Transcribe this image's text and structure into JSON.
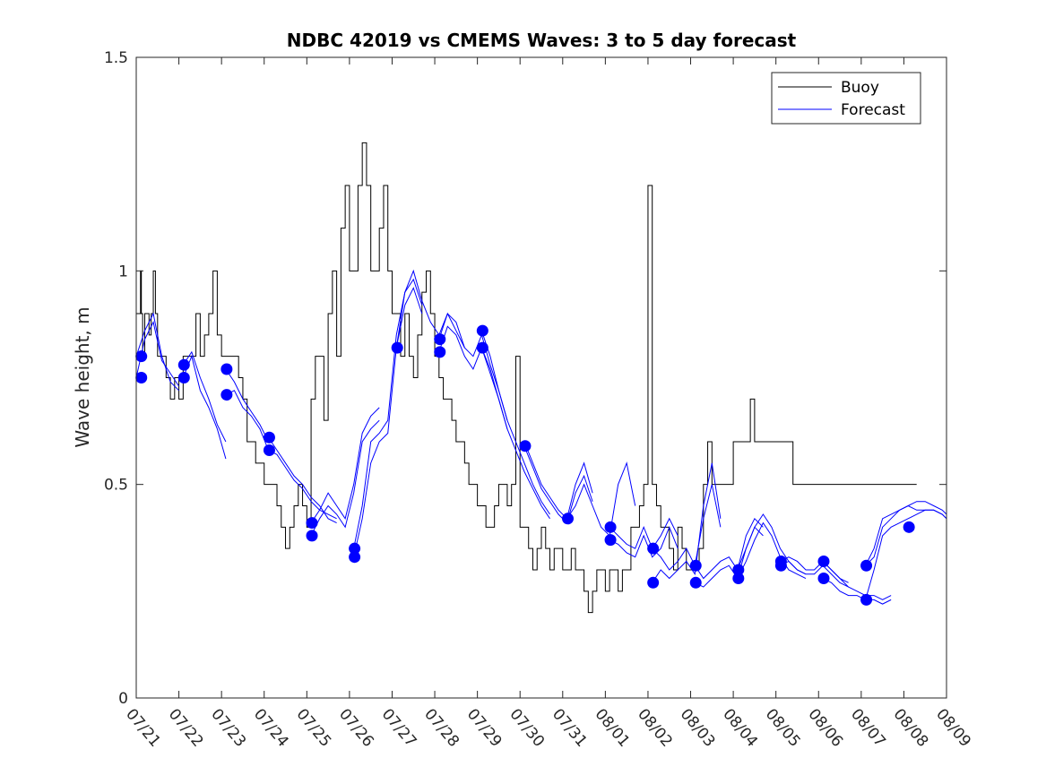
{
  "chart_data": {
    "type": "line",
    "title": "NDBC 42019 vs CMEMS Waves: 3 to 5 day forecast",
    "ylabel": "Wave height, m",
    "xlabel": "",
    "ylim": [
      0,
      1.5
    ],
    "xlim": [
      0,
      19
    ],
    "y_ticks": [
      0,
      0.5,
      1,
      1.5
    ],
    "y_tick_labels": [
      "0",
      "0.5",
      "1",
      "1.5"
    ],
    "x_tick_positions": [
      0,
      1,
      2,
      3,
      4,
      5,
      6,
      7,
      8,
      9,
      10,
      11,
      12,
      13,
      14,
      15,
      16,
      17,
      18,
      19
    ],
    "x_tick_labels": [
      "07/21",
      "07/22",
      "07/23",
      "07/24",
      "07/25",
      "07/26",
      "07/27",
      "07/28",
      "07/29",
      "07/30",
      "07/31",
      "08/01",
      "08/02",
      "08/03",
      "08/04",
      "08/05",
      "08/06",
      "08/07",
      "08/08",
      "08/09"
    ],
    "x_units": "days since 07/21",
    "legend": {
      "placement": "top-right",
      "entries": [
        {
          "label": "Buoy",
          "color": "#000000"
        },
        {
          "label": "Forecast",
          "color": "#0000ff"
        }
      ]
    },
    "colors": {
      "buoy": "#000000",
      "forecast": "#0000ff",
      "markers": "#0000ff"
    },
    "buoy": {
      "x": [
        0,
        0.1,
        0.12,
        0.15,
        0.2,
        0.25,
        0.3,
        0.35,
        0.4,
        0.45,
        0.5,
        0.55,
        0.6,
        0.7,
        0.8,
        0.9,
        1,
        1.1,
        1.2,
        1.3,
        1.4,
        1.5,
        1.6,
        1.7,
        1.8,
        1.9,
        2,
        2.1,
        2.2,
        2.3,
        2.4,
        2.5,
        2.6,
        2.7,
        2.8,
        2.9,
        3,
        3.1,
        3.2,
        3.3,
        3.4,
        3.5,
        3.6,
        3.7,
        3.8,
        3.9,
        4,
        4.1,
        4.2,
        4.3,
        4.4,
        4.5,
        4.6,
        4.7,
        4.8,
        4.9,
        5,
        5.1,
        5.2,
        5.3,
        5.4,
        5.5,
        5.6,
        5.7,
        5.8,
        5.9,
        6,
        6.1,
        6.2,
        6.3,
        6.4,
        6.5,
        6.6,
        6.7,
        6.8,
        6.9,
        7,
        7.1,
        7.2,
        7.3,
        7.4,
        7.5,
        7.6,
        7.7,
        7.8,
        7.9,
        8,
        8.1,
        8.2,
        8.3,
        8.4,
        8.5,
        8.6,
        8.7,
        8.8,
        8.9,
        9,
        9.1,
        9.2,
        9.3,
        9.4,
        9.5,
        9.6,
        9.7,
        9.8,
        9.9,
        10,
        10.1,
        10.2,
        10.3,
        10.4,
        10.5,
        10.6,
        10.7,
        10.8,
        10.9,
        11,
        11.1,
        11.2,
        11.3,
        11.4,
        11.5,
        11.6,
        11.7,
        11.8,
        11.9,
        12,
        12.1,
        12.2,
        12.3,
        12.4,
        12.5,
        12.6,
        12.7,
        12.8,
        12.9,
        13,
        13.1,
        13.2,
        13.3,
        13.4,
        13.5,
        13.6,
        13.7,
        13.8,
        13.9,
        14,
        14.1,
        14.2,
        14.3,
        14.4,
        14.5,
        14.6,
        14.7,
        14.8,
        14.9,
        15,
        15.1,
        15.2,
        15.3,
        15.4,
        15.5,
        15.6,
        15.7,
        15.8,
        15.9,
        16,
        16.1,
        16.2,
        16.3,
        16.4,
        16.5,
        16.6,
        16.7,
        16.8,
        16.9,
        17,
        17.1,
        17.2,
        17.3,
        17.4,
        17.5,
        17.6,
        17.7,
        17.8,
        17.9,
        18,
        18.1,
        18.2,
        18.3
      ],
      "y": [
        0.9,
        1.0,
        0.9,
        0.8,
        0.9,
        0.9,
        0.85,
        0.9,
        1.0,
        0.9,
        0.8,
        0.8,
        0.8,
        0.75,
        0.7,
        0.75,
        0.7,
        0.8,
        0.8,
        0.8,
        0.9,
        0.8,
        0.85,
        0.9,
        1.0,
        0.85,
        0.8,
        0.8,
        0.8,
        0.8,
        0.75,
        0.7,
        0.6,
        0.6,
        0.55,
        0.55,
        0.5,
        0.5,
        0.5,
        0.45,
        0.4,
        0.35,
        0.4,
        0.45,
        0.5,
        0.45,
        0.4,
        0.7,
        0.8,
        0.8,
        0.65,
        0.9,
        1.0,
        0.8,
        1.1,
        1.2,
        1.0,
        1.0,
        1.2,
        1.3,
        1.2,
        1.0,
        1.0,
        1.1,
        1.2,
        1.0,
        0.9,
        0.9,
        0.8,
        0.9,
        0.8,
        0.75,
        0.85,
        0.95,
        1.0,
        0.9,
        0.8,
        0.75,
        0.7,
        0.7,
        0.65,
        0.6,
        0.6,
        0.55,
        0.5,
        0.5,
        0.45,
        0.45,
        0.4,
        0.4,
        0.45,
        0.5,
        0.5,
        0.45,
        0.5,
        0.8,
        0.4,
        0.4,
        0.35,
        0.3,
        0.35,
        0.4,
        0.35,
        0.3,
        0.35,
        0.35,
        0.3,
        0.3,
        0.35,
        0.3,
        0.3,
        0.25,
        0.2,
        0.25,
        0.3,
        0.3,
        0.25,
        0.3,
        0.3,
        0.25,
        0.3,
        0.3,
        0.4,
        0.4,
        0.45,
        0.5,
        1.2,
        0.5,
        0.45,
        0.4,
        0.4,
        0.35,
        0.3,
        0.4,
        0.35,
        0.3,
        0.3,
        0.3,
        0.35,
        0.5,
        0.6,
        0.5,
        0.5,
        0.5,
        0.5,
        0.5,
        0.6,
        0.6,
        0.6,
        0.6,
        0.7,
        0.6,
        0.6,
        0.6,
        0.6,
        0.6,
        0.6,
        0.6,
        0.6,
        0.6,
        0.5,
        0.5,
        0.5,
        0.5,
        0.5,
        0.5,
        0.5,
        0.5,
        0.5,
        0.5,
        0.5,
        0.5,
        0.5,
        0.5,
        0.5,
        0.5,
        0.5,
        0.5,
        0.5,
        0.5,
        0.5,
        0.5,
        0.5,
        0.5,
        0.5,
        0.5,
        0.5,
        0.5,
        0.5,
        0.5
      ]
    },
    "forecast_series": [
      {
        "x": [
          0,
          0.2,
          0.4,
          0.6,
          0.8,
          1.0
        ],
        "y": [
          0.8,
          0.86,
          0.9,
          0.8,
          0.74,
          0.72
        ]
      },
      {
        "x": [
          0,
          0.2,
          0.4,
          0.6,
          0.8,
          1.0
        ],
        "y": [
          0.75,
          0.84,
          0.88,
          0.79,
          0.76,
          0.73
        ]
      },
      {
        "x": [
          1.1,
          1.3,
          1.5,
          1.7,
          1.9,
          2.1
        ],
        "y": [
          0.78,
          0.81,
          0.75,
          0.7,
          0.64,
          0.6
        ]
      },
      {
        "x": [
          1.1,
          1.3,
          1.5,
          1.7,
          1.9,
          2.1
        ],
        "y": [
          0.75,
          0.8,
          0.72,
          0.68,
          0.63,
          0.56
        ]
      },
      {
        "x": [
          2.1,
          2.3,
          2.5,
          2.7,
          2.9,
          3.1
        ],
        "y": [
          0.77,
          0.74,
          0.7,
          0.67,
          0.64,
          0.6
        ]
      },
      {
        "x": [
          2.1,
          2.3,
          2.5,
          2.7,
          2.9,
          3.1
        ],
        "y": [
          0.71,
          0.72,
          0.68,
          0.66,
          0.63,
          0.58
        ]
      },
      {
        "x": [
          3.1,
          3.3,
          3.5,
          3.7,
          3.9,
          4.1,
          4.3,
          4.5,
          4.7
        ],
        "y": [
          0.61,
          0.58,
          0.55,
          0.52,
          0.5,
          0.47,
          0.45,
          0.42,
          0.41
        ]
      },
      {
        "x": [
          3.1,
          3.3,
          3.5,
          3.7,
          3.9,
          4.1,
          4.3,
          4.5,
          4.7
        ],
        "y": [
          0.58,
          0.57,
          0.54,
          0.51,
          0.49,
          0.46,
          0.44,
          0.43,
          0.42
        ]
      },
      {
        "x": [
          4.1,
          4.3,
          4.5,
          4.7,
          4.9,
          5.1,
          5.3,
          5.5,
          5.7
        ],
        "y": [
          0.41,
          0.44,
          0.48,
          0.45,
          0.42,
          0.5,
          0.62,
          0.66,
          0.68
        ]
      },
      {
        "x": [
          4.1,
          4.3,
          4.5,
          4.7,
          4.9,
          5.1,
          5.3,
          5.5,
          5.7
        ],
        "y": [
          0.38,
          0.42,
          0.45,
          0.43,
          0.4,
          0.48,
          0.6,
          0.63,
          0.65
        ]
      },
      {
        "x": [
          5.1,
          5.3,
          5.5,
          5.7,
          5.9,
          6.1,
          6.3,
          6.5,
          6.7
        ],
        "y": [
          0.35,
          0.45,
          0.6,
          0.62,
          0.65,
          0.85,
          0.95,
          0.98,
          0.92
        ]
      },
      {
        "x": [
          5.1,
          5.3,
          5.5,
          5.7,
          5.9,
          6.1,
          6.3,
          6.5,
          6.7
        ],
        "y": [
          0.33,
          0.42,
          0.55,
          0.6,
          0.62,
          0.82,
          0.92,
          0.96,
          0.9
        ]
      },
      {
        "x": [
          6.1,
          6.3,
          6.5,
          6.7,
          6.9,
          7.1,
          7.3,
          7.5,
          7.7
        ],
        "y": [
          0.82,
          0.95,
          1.0,
          0.93,
          0.88,
          0.85,
          0.9,
          0.86,
          0.82
        ]
      },
      {
        "x": [
          7.1,
          7.3,
          7.5,
          7.7,
          7.9,
          8.1,
          8.3,
          8.5,
          8.7
        ],
        "y": [
          0.84,
          0.9,
          0.88,
          0.82,
          0.8,
          0.85,
          0.78,
          0.72,
          0.65
        ]
      },
      {
        "x": [
          7.1,
          7.3,
          7.5,
          7.7,
          7.9,
          8.1,
          8.3,
          8.5,
          8.7
        ],
        "y": [
          0.81,
          0.87,
          0.85,
          0.8,
          0.77,
          0.82,
          0.76,
          0.7,
          0.63
        ]
      },
      {
        "x": [
          8.1,
          8.3,
          8.5,
          8.7,
          8.9,
          9.1,
          9.3,
          9.5,
          9.7
        ],
        "y": [
          0.86,
          0.8,
          0.72,
          0.65,
          0.6,
          0.55,
          0.5,
          0.46,
          0.43
        ]
      },
      {
        "x": [
          8.1,
          8.3,
          8.5,
          8.7,
          8.9,
          9.1,
          9.3,
          9.5,
          9.7
        ],
        "y": [
          0.82,
          0.77,
          0.7,
          0.63,
          0.58,
          0.53,
          0.49,
          0.45,
          0.42
        ]
      },
      {
        "x": [
          9.1,
          9.3,
          9.5,
          9.7,
          9.9,
          10.1,
          10.3,
          10.5,
          10.7
        ],
        "y": [
          0.6,
          0.55,
          0.5,
          0.47,
          0.44,
          0.42,
          0.5,
          0.55,
          0.48
        ]
      },
      {
        "x": [
          9.1,
          9.3,
          9.5,
          9.7,
          9.9,
          10.1,
          10.3,
          10.5,
          10.7
        ],
        "y": [
          0.59,
          0.54,
          0.49,
          0.46,
          0.43,
          0.41,
          0.48,
          0.52,
          0.46
        ]
      },
      {
        "x": [
          10.1,
          10.3,
          10.5,
          10.7,
          10.9,
          11.1,
          11.3,
          11.5,
          11.7
        ],
        "y": [
          0.42,
          0.45,
          0.5,
          0.45,
          0.4,
          0.38,
          0.5,
          0.55,
          0.45
        ]
      },
      {
        "x": [
          11.1,
          11.3,
          11.5,
          11.7,
          11.9,
          12.1,
          12.3,
          12.5,
          12.7
        ],
        "y": [
          0.4,
          0.38,
          0.36,
          0.35,
          0.4,
          0.35,
          0.38,
          0.42,
          0.38
        ]
      },
      {
        "x": [
          11.1,
          11.3,
          11.5,
          11.7,
          11.9,
          12.1,
          12.3,
          12.5,
          12.7
        ],
        "y": [
          0.37,
          0.36,
          0.34,
          0.33,
          0.38,
          0.33,
          0.35,
          0.4,
          0.35
        ]
      },
      {
        "x": [
          12.1,
          12.3,
          12.5,
          12.7,
          12.9,
          13.1,
          13.3,
          13.5,
          13.7
        ],
        "y": [
          0.35,
          0.33,
          0.3,
          0.32,
          0.35,
          0.31,
          0.42,
          0.5,
          0.4
        ]
      },
      {
        "x": [
          12.1,
          12.3,
          12.5,
          12.7,
          12.9,
          13.1,
          13.3,
          13.5,
          13.7
        ],
        "y": [
          0.27,
          0.3,
          0.28,
          0.3,
          0.32,
          0.29,
          0.45,
          0.55,
          0.42
        ]
      },
      {
        "x": [
          13.1,
          13.3,
          13.5,
          13.7,
          13.9,
          14.1,
          14.3,
          14.5,
          14.7
        ],
        "y": [
          0.31,
          0.28,
          0.3,
          0.32,
          0.33,
          0.3,
          0.38,
          0.42,
          0.4
        ]
      },
      {
        "x": [
          13.1,
          13.3,
          13.5,
          13.7,
          13.9,
          14.1,
          14.3,
          14.5,
          14.7
        ],
        "y": [
          0.27,
          0.26,
          0.28,
          0.3,
          0.31,
          0.28,
          0.35,
          0.4,
          0.38
        ]
      },
      {
        "x": [
          14.1,
          14.3,
          14.5,
          14.7,
          14.9,
          15.1,
          15.3,
          15.5,
          15.7
        ],
        "y": [
          0.3,
          0.35,
          0.4,
          0.43,
          0.4,
          0.35,
          0.32,
          0.3,
          0.29
        ]
      },
      {
        "x": [
          14.1,
          14.3,
          14.5,
          14.7,
          14.9,
          15.1,
          15.3,
          15.5,
          15.7
        ],
        "y": [
          0.28,
          0.32,
          0.37,
          0.41,
          0.38,
          0.33,
          0.3,
          0.29,
          0.28
        ]
      },
      {
        "x": [
          15.1,
          15.3,
          15.5,
          15.7,
          15.9,
          16.1,
          16.3,
          16.5,
          16.7
        ],
        "y": [
          0.32,
          0.33,
          0.32,
          0.3,
          0.3,
          0.32,
          0.3,
          0.28,
          0.27
        ]
      },
      {
        "x": [
          15.1,
          15.3,
          15.5,
          15.7,
          15.9,
          16.1,
          16.3,
          16.5,
          16.7
        ],
        "y": [
          0.31,
          0.32,
          0.3,
          0.29,
          0.29,
          0.31,
          0.29,
          0.27,
          0.26
        ]
      },
      {
        "x": [
          16.1,
          16.3,
          16.5,
          16.7,
          16.9,
          17.1,
          17.3,
          17.5,
          17.7
        ],
        "y": [
          0.32,
          0.3,
          0.28,
          0.26,
          0.25,
          0.24,
          0.24,
          0.23,
          0.24
        ]
      },
      {
        "x": [
          16.1,
          16.3,
          16.5,
          16.7,
          16.9,
          17.1,
          17.3,
          17.5,
          17.7
        ],
        "y": [
          0.28,
          0.27,
          0.25,
          0.24,
          0.24,
          0.23,
          0.23,
          0.22,
          0.23
        ]
      },
      {
        "x": [
          17.1,
          17.3,
          17.5,
          17.7,
          17.9,
          18.1,
          18.3,
          18.5,
          18.7,
          18.9,
          19.0
        ],
        "y": [
          0.31,
          0.35,
          0.42,
          0.43,
          0.44,
          0.45,
          0.44,
          0.44,
          0.44,
          0.43,
          0.42
        ]
      },
      {
        "x": [
          17.1,
          17.3,
          17.5,
          17.7,
          17.9,
          18.1,
          18.3,
          18.5,
          18.7,
          18.9,
          19.0
        ],
        "y": [
          0.23,
          0.3,
          0.38,
          0.4,
          0.41,
          0.42,
          0.43,
          0.44,
          0.44,
          0.43,
          0.42
        ]
      },
      {
        "x": [
          17.1,
          17.3,
          17.5,
          17.7,
          17.9,
          18.1,
          18.3,
          18.5,
          18.7,
          18.9,
          19.0
        ],
        "y": [
          0.31,
          0.33,
          0.4,
          0.42,
          0.44,
          0.45,
          0.46,
          0.46,
          0.45,
          0.44,
          0.43
        ]
      }
    ],
    "forecast_markers": {
      "x": [
        0.12,
        0.12,
        1.12,
        1.12,
        2.12,
        2.12,
        3.12,
        3.12,
        4.12,
        4.12,
        5.12,
        5.12,
        6.12,
        7.12,
        7.12,
        8.12,
        8.12,
        9.12,
        10.12,
        11.12,
        11.12,
        12.12,
        12.12,
        13.12,
        13.12,
        14.12,
        14.12,
        15.12,
        15.12,
        16.12,
        16.12,
        17.12,
        17.12,
        18.12
      ],
      "y": [
        0.8,
        0.75,
        0.78,
        0.75,
        0.77,
        0.71,
        0.61,
        0.58,
        0.41,
        0.38,
        0.35,
        0.33,
        0.82,
        0.84,
        0.81,
        0.86,
        0.82,
        0.59,
        0.42,
        0.4,
        0.37,
        0.35,
        0.27,
        0.31,
        0.27,
        0.3,
        0.28,
        0.32,
        0.31,
        0.32,
        0.28,
        0.31,
        0.23,
        0.4
      ]
    }
  }
}
